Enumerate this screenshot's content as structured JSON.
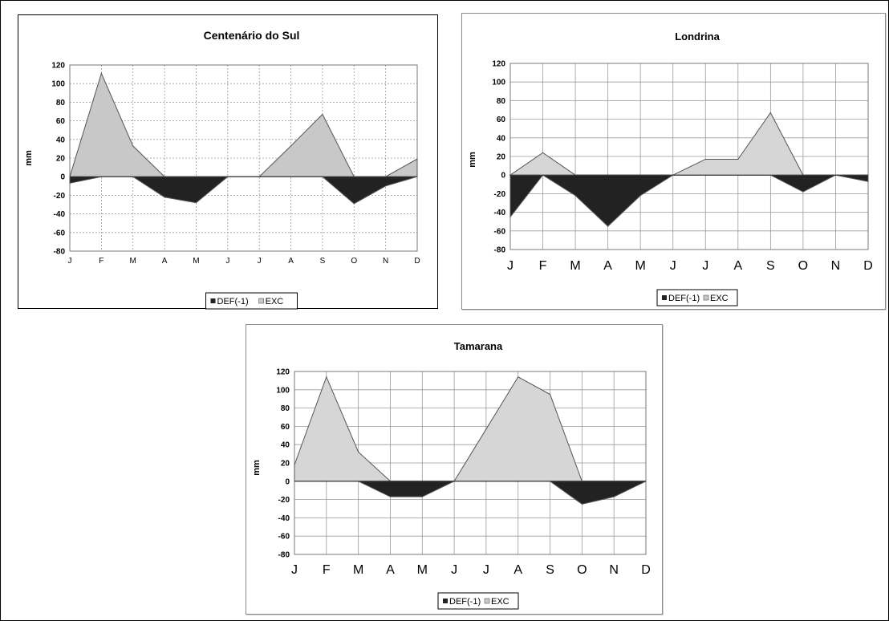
{
  "colors": {
    "def": "#222222",
    "exc": "#c8c8c8",
    "exc_light": "#d6d6d6",
    "grid": "#9a9a9a",
    "outline": "#555555"
  },
  "chart_data": [
    {
      "type": "area",
      "title": "Centenário do Sul",
      "ylabel": "mm",
      "ylim": [
        -80,
        120
      ],
      "yticks": [
        120,
        100,
        80,
        60,
        40,
        20,
        0,
        -20,
        -40,
        -60,
        -80
      ],
      "categories": [
        "J",
        "F",
        "M",
        "A",
        "M",
        "J",
        "J",
        "A",
        "S",
        "O",
        "N",
        "D"
      ],
      "grid": "dashed",
      "legend": "bottom",
      "legend_labels": [
        "DEF(-1)",
        "EXC"
      ],
      "series": [
        {
          "name": "DEF(-1)",
          "values": [
            -7,
            0,
            0,
            -22,
            -28,
            0,
            0,
            0,
            0,
            -29,
            -10,
            0
          ]
        },
        {
          "name": "EXC",
          "values": [
            0,
            111,
            33,
            0,
            0,
            0,
            0,
            33,
            67,
            0,
            0,
            19
          ]
        }
      ]
    },
    {
      "type": "area",
      "title": "Londrina",
      "ylabel": "mm",
      "ylim": [
        -80,
        120
      ],
      "yticks": [
        120,
        100,
        80,
        60,
        40,
        20,
        0,
        -20,
        -40,
        -60,
        -80
      ],
      "categories": [
        "J",
        "F",
        "M",
        "A",
        "M",
        "J",
        "J",
        "A",
        "S",
        "O",
        "N",
        "D"
      ],
      "grid": "solid",
      "legend": "bottom",
      "legend_labels": [
        "DEF(-1)",
        "EXC"
      ],
      "series": [
        {
          "name": "DEF(-1)",
          "values": [
            -45,
            0,
            -22,
            -55,
            -22,
            0,
            0,
            0,
            0,
            -18,
            0,
            -7
          ]
        },
        {
          "name": "EXC",
          "values": [
            0,
            24,
            0,
            0,
            0,
            0,
            17,
            17,
            67,
            0,
            0,
            0
          ]
        }
      ]
    },
    {
      "type": "area",
      "title": "Tamarana",
      "ylabel": "mm",
      "ylim": [
        -80,
        120
      ],
      "yticks": [
        120,
        100,
        80,
        60,
        40,
        20,
        0,
        -20,
        -40,
        -60,
        -80
      ],
      "categories": [
        "J",
        "F",
        "M",
        "A",
        "M",
        "J",
        "J",
        "A",
        "S",
        "O",
        "N",
        "D"
      ],
      "grid": "solid",
      "legend": "bottom",
      "legend_labels": [
        "DEF(-1)",
        "EXC"
      ],
      "series": [
        {
          "name": "DEF(-1)",
          "values": [
            0,
            0,
            0,
            -17,
            -17,
            0,
            0,
            0,
            0,
            -25,
            -17,
            0
          ]
        },
        {
          "name": "EXC",
          "values": [
            18,
            114,
            32,
            0,
            0,
            0,
            57,
            114,
            95,
            0,
            0,
            0
          ]
        }
      ]
    }
  ]
}
